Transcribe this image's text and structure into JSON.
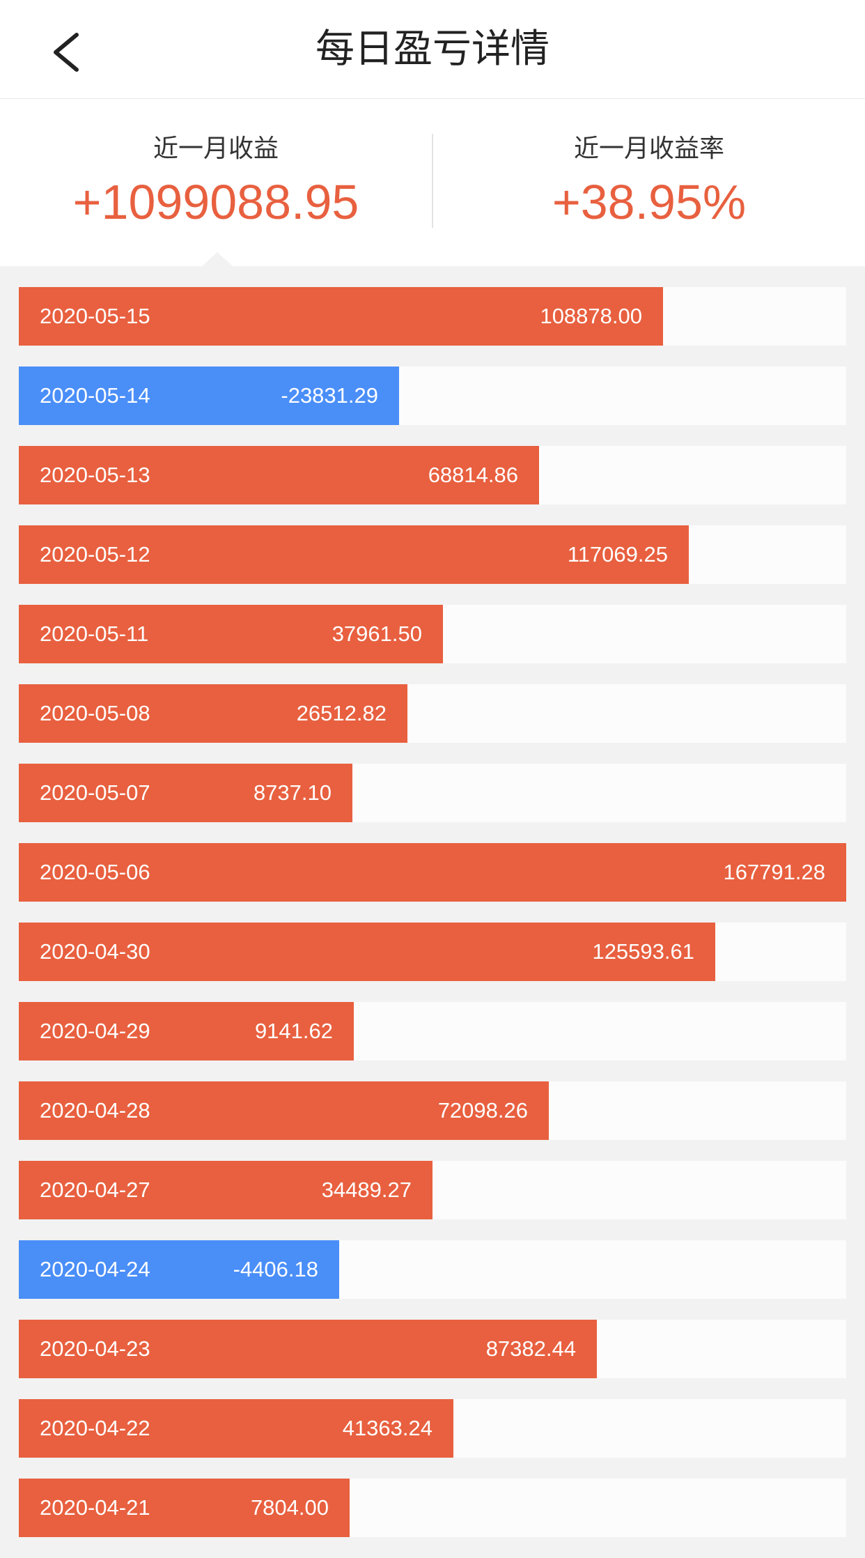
{
  "header": {
    "title": "每日盈亏详情"
  },
  "summary": {
    "month_profit_label": "近一月收益",
    "month_profit_value": "+1099088.95",
    "month_rate_label": "近一月收益率",
    "month_rate_value": "+38.95%"
  },
  "colors": {
    "profit": "#e8603f",
    "loss": "#4a8ef8"
  },
  "chart_data": {
    "type": "bar",
    "categories": [
      "2020-05-15",
      "2020-05-14",
      "2020-05-13",
      "2020-05-12",
      "2020-05-11",
      "2020-05-08",
      "2020-05-07",
      "2020-05-06",
      "2020-04-30",
      "2020-04-29",
      "2020-04-28",
      "2020-04-27",
      "2020-04-24",
      "2020-04-23",
      "2020-04-22",
      "2020-04-21"
    ],
    "values": [
      108878.0,
      -23831.29,
      68814.86,
      117069.25,
      37961.5,
      26512.82,
      8737.1,
      167791.28,
      125593.61,
      9141.62,
      72098.26,
      34489.27,
      -4406.18,
      87382.44,
      41363.24,
      7804.0
    ],
    "labels": [
      "108878.00",
      "-23831.29",
      "68814.86",
      "117069.25",
      "37961.50",
      "26512.82",
      "8737.10",
      "167791.28",
      "125593.61",
      "9141.62",
      "72098.26",
      "34489.27",
      "-4406.18",
      "87382.44",
      "41363.24",
      "7804.00"
    ]
  }
}
